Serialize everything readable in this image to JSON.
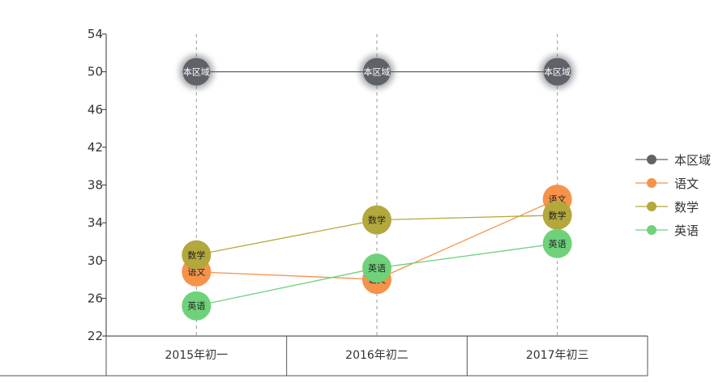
{
  "chart_data": {
    "type": "line",
    "categories": [
      "2015年初一",
      "2016年初二",
      "2017年初三"
    ],
    "ylim": [
      22,
      54
    ],
    "yticks": [
      22,
      26,
      30,
      34,
      38,
      42,
      46,
      50,
      54
    ],
    "grid": false,
    "legend_position": "right",
    "series": [
      {
        "name": "本区域",
        "color": "#5f6268",
        "values": [
          50,
          50,
          50
        ]
      },
      {
        "name": "语文",
        "color": "#f5934a",
        "values": [
          28.8,
          28.0,
          36.5
        ]
      },
      {
        "name": "数学",
        "color": "#b3a83c",
        "values": [
          30.6,
          34.3,
          34.8
        ]
      },
      {
        "name": "英语",
        "color": "#6fd17a",
        "values": [
          25.2,
          29.2,
          31.8
        ]
      }
    ]
  }
}
